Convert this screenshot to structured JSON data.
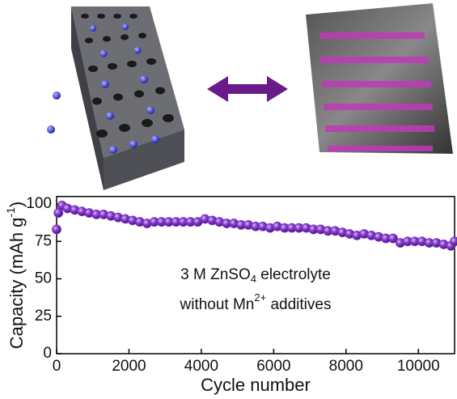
{
  "chart_data": {
    "type": "scatter",
    "x_label": "Cycle number",
    "y_label": {
      "main": "Capacity (mAh g",
      "sup": "-1",
      "end": ")"
    },
    "annotation": [
      {
        "main": "3 M ZnSO",
        "sub": "4",
        "end": " electrolyte"
      },
      {
        "main": "without Mn",
        "sup": "2+",
        "end": " additives"
      }
    ],
    "xlim": [
      0,
      11000
    ],
    "ylim": [
      0,
      105
    ],
    "xticks": [
      0,
      2000,
      4000,
      6000,
      8000,
      10000
    ],
    "yticks": [
      0,
      25,
      50,
      75,
      100
    ],
    "color": "#7a2fc0",
    "x": [
      0,
      50,
      150,
      300,
      500,
      700,
      900,
      1100,
      1300,
      1500,
      1700,
      1900,
      2100,
      2300,
      2500,
      2700,
      2900,
      3100,
      3300,
      3500,
      3700,
      3900,
      4100,
      4300,
      4500,
      4700,
      4900,
      5100,
      5300,
      5500,
      5700,
      5900,
      6100,
      6300,
      6500,
      6700,
      6900,
      7100,
      7300,
      7500,
      7700,
      7900,
      8100,
      8300,
      8500,
      8700,
      8900,
      9100,
      9300,
      9500,
      9700,
      9900,
      10100,
      10300,
      10500,
      10700,
      10900,
      11000
    ],
    "values": [
      83,
      94,
      99,
      97,
      96,
      95,
      94,
      93,
      93,
      92,
      91,
      90,
      89,
      88,
      87,
      88,
      88,
      88,
      88,
      88,
      88,
      88,
      90,
      89,
      88,
      87,
      87,
      86,
      86,
      85,
      85,
      84,
      85,
      84,
      84,
      84,
      84,
      83,
      83,
      82,
      82,
      81,
      80,
      79,
      80,
      79,
      78,
      77,
      77,
      74,
      75,
      75,
      75,
      74,
      74,
      73,
      72,
      75
    ]
  }
}
